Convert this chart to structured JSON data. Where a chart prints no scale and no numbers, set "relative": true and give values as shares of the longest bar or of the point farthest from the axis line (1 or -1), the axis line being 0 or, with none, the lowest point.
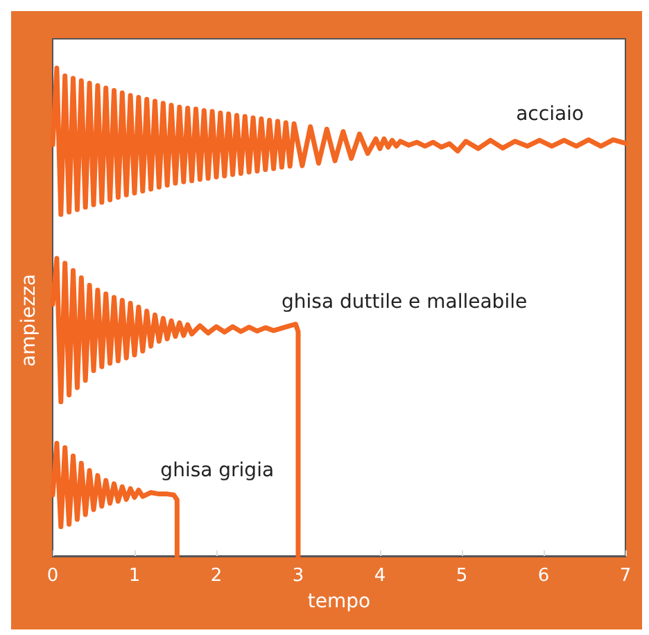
{
  "chart_data": {
    "type": "line",
    "relative": true,
    "xlabel": "tempo",
    "ylabel": "ampiezza",
    "xlim": [
      0,
      7
    ],
    "xticks": [
      0,
      1,
      2,
      3,
      4,
      5,
      6,
      7
    ],
    "grid": false,
    "legend": false,
    "marker": "none",
    "line_style": "solid",
    "series": [
      {
        "name": "acciaio",
        "color": "#f26722",
        "x": [
          0,
          0.05,
          0.1,
          0.15,
          0.2,
          0.25,
          0.3,
          0.35,
          0.4,
          0.45,
          0.5,
          0.55,
          0.6,
          0.65,
          0.7,
          0.75,
          0.8,
          0.85,
          0.9,
          0.95,
          1.0,
          1.05,
          1.1,
          1.15,
          1.2,
          1.25,
          1.3,
          1.35,
          1.4,
          1.45,
          1.5,
          1.55,
          1.6,
          1.65,
          1.7,
          1.75,
          1.8,
          1.85,
          1.9,
          1.95,
          2.0,
          2.05,
          2.1,
          2.15,
          2.2,
          2.25,
          2.3,
          2.35,
          2.4,
          2.45,
          2.5,
          2.55,
          2.6,
          2.65,
          2.7,
          2.75,
          2.8,
          2.85,
          2.9,
          2.95,
          3.05,
          3.15,
          3.25,
          3.35,
          3.45,
          3.55,
          3.65,
          3.75,
          3.85,
          3.95,
          4.0,
          4.05,
          4.1,
          4.15,
          4.2,
          4.25,
          4.35,
          4.45,
          4.55,
          4.65,
          4.75,
          4.85,
          4.95,
          5.05,
          5.2,
          5.35,
          5.5,
          5.65,
          5.8,
          5.95,
          6.1,
          6.25,
          6.4,
          6.55,
          6.7,
          6.85,
          7.0
        ],
        "values": [
          0.843,
          1,
          0.7,
          0.984,
          0.705,
          0.979,
          0.71,
          0.974,
          0.715,
          0.969,
          0.72,
          0.964,
          0.725,
          0.959,
          0.73,
          0.954,
          0.735,
          0.949,
          0.74,
          0.944,
          0.744,
          0.94,
          0.748,
          0.936,
          0.752,
          0.932,
          0.756,
          0.928,
          0.76,
          0.924,
          0.764,
          0.92,
          0.767,
          0.918,
          0.769,
          0.916,
          0.772,
          0.913,
          0.774,
          0.911,
          0.777,
          0.908,
          0.779,
          0.906,
          0.782,
          0.903,
          0.784,
          0.901,
          0.787,
          0.898,
          0.789,
          0.896,
          0.792,
          0.893,
          0.794,
          0.891,
          0.797,
          0.888,
          0.799,
          0.886,
          0.8,
          0.88,
          0.805,
          0.875,
          0.81,
          0.87,
          0.815,
          0.865,
          0.825,
          0.855,
          0.835,
          0.855,
          0.838,
          0.852,
          0.84,
          0.85,
          0.842,
          0.848,
          0.84,
          0.848,
          0.838,
          0.845,
          0.83,
          0.85,
          0.835,
          0.852,
          0.836,
          0.85,
          0.84,
          0.852,
          0.84,
          0.852,
          0.84,
          0.853,
          0.84,
          0.853,
          0.846
        ]
      },
      {
        "name": "ghisa duttile e malleabile",
        "color": "#f26722",
        "x": [
          0,
          0.05,
          0.1,
          0.15,
          0.2,
          0.25,
          0.3,
          0.35,
          0.4,
          0.45,
          0.5,
          0.55,
          0.6,
          0.65,
          0.7,
          0.75,
          0.8,
          0.85,
          0.9,
          0.95,
          1.0,
          1.05,
          1.1,
          1.15,
          1.2,
          1.25,
          1.3,
          1.35,
          1.4,
          1.45,
          1.5,
          1.55,
          1.6,
          1.65,
          1.7,
          1.8,
          1.9,
          2.0,
          2.1,
          2.2,
          2.3,
          2.4,
          2.5,
          2.6,
          2.7,
          2.8,
          2.9,
          2.97,
          3.0,
          3.0
        ],
        "values": [
          0.516,
          0.61,
          0.316,
          0.6,
          0.33,
          0.585,
          0.345,
          0.57,
          0.36,
          0.555,
          0.38,
          0.545,
          0.388,
          0.537,
          0.395,
          0.53,
          0.4,
          0.524,
          0.406,
          0.518,
          0.412,
          0.51,
          0.42,
          0.502,
          0.43,
          0.494,
          0.44,
          0.487,
          0.445,
          0.482,
          0.45,
          0.478,
          0.452,
          0.474,
          0.455,
          0.472,
          0.457,
          0.47,
          0.459,
          0.47,
          0.46,
          0.469,
          0.461,
          0.468,
          0.462,
          0.467,
          0.472,
          0.475,
          0.46,
          0
        ]
      },
      {
        "name": "ghisa grigia",
        "color": "#f26722",
        "x": [
          0,
          0.05,
          0.1,
          0.15,
          0.2,
          0.25,
          0.3,
          0.35,
          0.4,
          0.45,
          0.5,
          0.55,
          0.6,
          0.65,
          0.7,
          0.75,
          0.8,
          0.85,
          0.9,
          0.95,
          1.0,
          1.05,
          1.1,
          1.2,
          1.3,
          1.4,
          1.48,
          1.52,
          1.52
        ],
        "values": [
          0.125,
          0.231,
          0.06,
          0.222,
          0.065,
          0.205,
          0.075,
          0.19,
          0.085,
          0.175,
          0.095,
          0.165,
          0.102,
          0.155,
          0.108,
          0.148,
          0.112,
          0.142,
          0.116,
          0.138,
          0.12,
          0.135,
          0.122,
          0.13,
          0.127,
          0.127,
          0.125,
          0.115,
          0
        ]
      }
    ]
  }
}
